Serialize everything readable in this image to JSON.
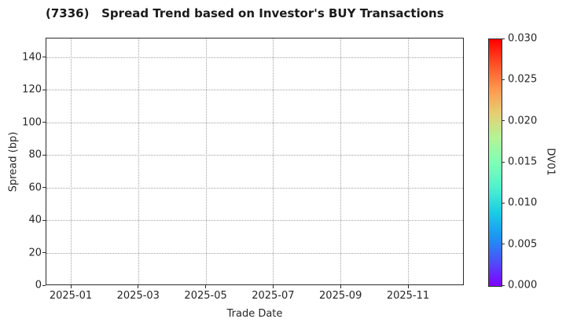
{
  "chart_data": {
    "type": "scatter",
    "title": "(7336)   Spread Trend based on Investor's BUY Transactions",
    "xlabel": "Trade Date",
    "ylabel": "Spread (bp)",
    "x_tick_labels": [
      "2025-01",
      "2025-03",
      "2025-05",
      "2025-07",
      "2025-09",
      "2025-11"
    ],
    "y_tick_values": [
      0,
      20,
      40,
      60,
      80,
      100,
      120,
      140
    ],
    "ylim": [
      0,
      152
    ],
    "grid": true,
    "grid_style": "dotted",
    "legend": "none",
    "series": [],
    "colorbar": {
      "label": "DV01",
      "tick_labels": [
        "0.000",
        "0.005",
        "0.010",
        "0.015",
        "0.020",
        "0.025",
        "0.030"
      ],
      "min": 0.0,
      "max": 0.03,
      "colormap": "rainbow",
      "gradient_stops_bottom_to_top": [
        "#8000FF",
        "#4D4FFC",
        "#1A96F3",
        "#1ACEE3",
        "#4DF3CE",
        "#80FFB5",
        "#B3F396",
        "#E6CE74",
        "#FF964F",
        "#FF4F28",
        "#FF0000"
      ]
    },
    "colors": {
      "background": "#ffffff",
      "text": "#262626",
      "spine": "#2b2b2b",
      "gridline": "#a3a3a3"
    }
  }
}
